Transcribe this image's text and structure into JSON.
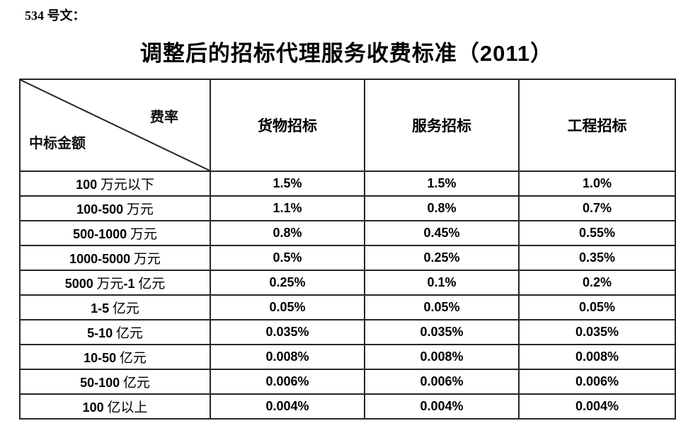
{
  "doc": {
    "ref": "534 号文：",
    "title": "调整后的招标代理服务收费标准（2011）"
  },
  "table": {
    "corner": {
      "top_right": "费率",
      "bottom_left": "中标金额"
    },
    "columns": [
      "货物招标",
      "服务招标",
      "工程招标"
    ],
    "rows": [
      {
        "label": "100 万元以下",
        "values": [
          "1.5%",
          "1.5%",
          "1.0%"
        ]
      },
      {
        "label": "100-500 万元",
        "values": [
          "1.1%",
          "0.8%",
          "0.7%"
        ]
      },
      {
        "label": "500-1000 万元",
        "values": [
          "0.8%",
          "0.45%",
          "0.55%"
        ]
      },
      {
        "label": "1000-5000 万元",
        "values": [
          "0.5%",
          "0.25%",
          "0.35%"
        ]
      },
      {
        "label": "5000 万元-1 亿元",
        "values": [
          "0.25%",
          "0.1%",
          "0.2%"
        ]
      },
      {
        "label": "1-5 亿元",
        "values": [
          "0.05%",
          "0.05%",
          "0.05%"
        ]
      },
      {
        "label": "5-10 亿元",
        "values": [
          "0.035%",
          "0.035%",
          "0.035%"
        ]
      },
      {
        "label": "10-50 亿元",
        "values": [
          "0.008%",
          "0.008%",
          "0.008%"
        ]
      },
      {
        "label": "50-100 亿元",
        "values": [
          "0.006%",
          "0.006%",
          "0.006%"
        ]
      },
      {
        "label": "100 亿以上",
        "values": [
          "0.004%",
          "0.004%",
          "0.004%"
        ]
      }
    ]
  },
  "colors": {
    "background": "#ffffff",
    "text": "#000000",
    "border": "#262626"
  }
}
